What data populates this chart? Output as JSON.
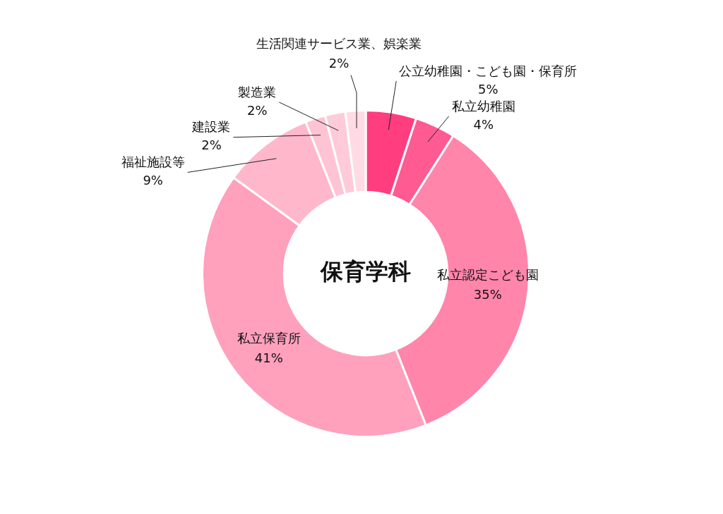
{
  "chart_data": {
    "type": "donut",
    "title": "保育学科",
    "legend": false,
    "categories": [
      "公立幼稚園・こども園・保育所",
      "私立幼稚園",
      "私立認定こども園",
      "私立保育所",
      "福祉施設等",
      "建設業",
      "製造業",
      "生活関連サービス業、娯楽業"
    ],
    "values": [
      5,
      4,
      35,
      41,
      9,
      2,
      2,
      2
    ],
    "value_labels": [
      "5%",
      "4%",
      "35%",
      "41%",
      "9%",
      "2%",
      "2%",
      "2%"
    ],
    "colors": [
      "#ff3d7f",
      "#ff5a92",
      "#ff85ab",
      "#ffa0bd",
      "#ffb7cc",
      "#ffc4d4",
      "#ffcad9",
      "#ffdbe5"
    ]
  }
}
